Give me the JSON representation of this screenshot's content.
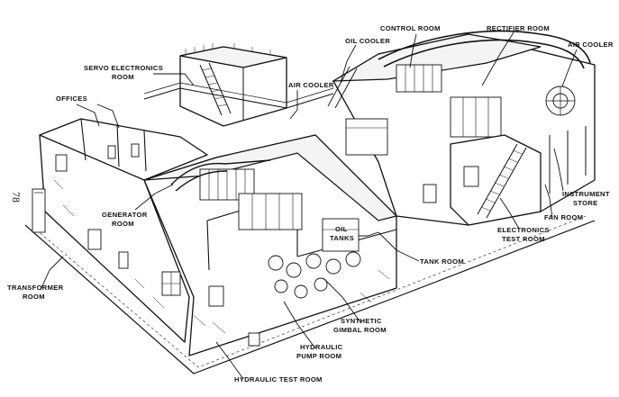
{
  "page_number": "78",
  "labels": {
    "control_room": "CONTROL ROOM",
    "rectifier_room": "RECTIFIER ROOM",
    "air_cooler_right": "AIR COOLER",
    "oil_cooler": "OIL COOLER",
    "servo_line1": "SERVO ELECTRONICS",
    "servo_line2": "ROOM",
    "air_cooler_mid": "AIR COOLER",
    "offices": "OFFICES",
    "generator_line1": "GENERATOR",
    "generator_line2": "ROOM",
    "oil_tanks_line1": "OIL",
    "oil_tanks_line2": "TANKS",
    "tank_room": "TANK ROOM",
    "instrument_line1": "INSTRUMENT",
    "instrument_line2": "STORE",
    "fan_room": "FAN ROOM",
    "elec_test_line1": "ELECTRONICS",
    "elec_test_line2": "TEST ROOM",
    "transformer_line1": "TRANSFORMER",
    "transformer_line2": "ROOM",
    "synthetic_line1": "SYNTHETIC",
    "synthetic_line2": "GIMBAL ROOM",
    "hydraulic_pump_line1": "HYDRAULIC",
    "hydraulic_pump_line2": "PUMP ROOM",
    "hydraulic_test_room": "HYDRAULIC TEST ROOM"
  }
}
